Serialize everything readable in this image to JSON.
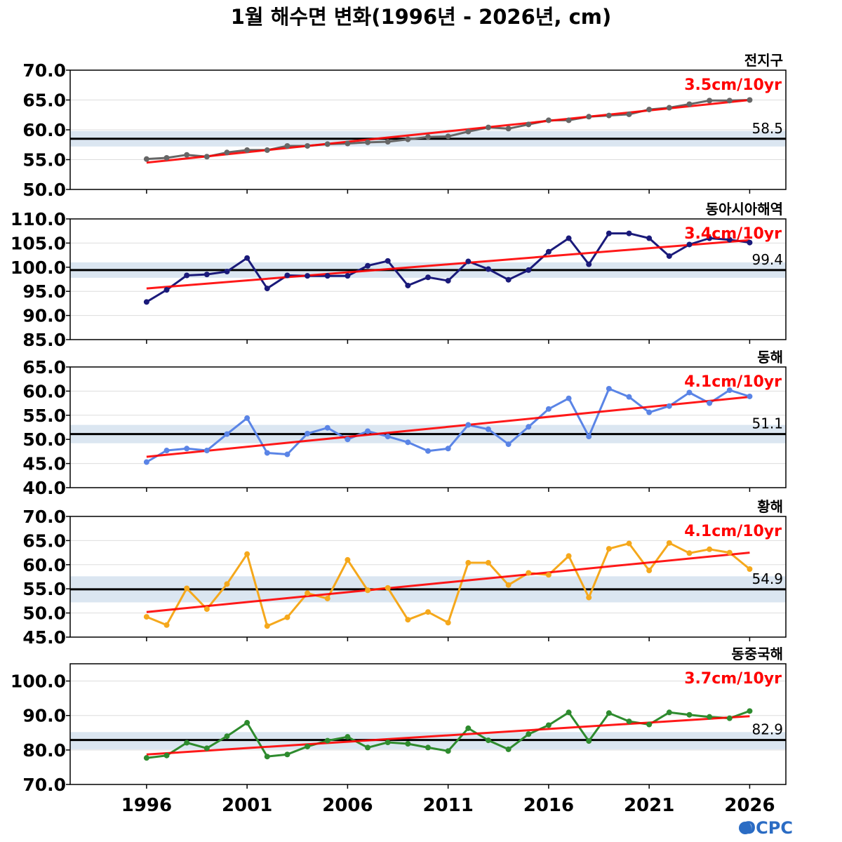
{
  "title": "1월 해수면 변화(1996년 - 2026년, cm)",
  "logo": "OCPC",
  "colors": {
    "trend": "#ff0000",
    "mean_line": "#000000",
    "band": "#dbe6f1"
  },
  "chart_data": [
    {
      "type": "line",
      "name": "전지구",
      "trend_label": "3.5cm/10yr",
      "mean_label": "58.5",
      "mean": 58.5,
      "band": [
        57.2,
        59.8
      ],
      "trend": [
        54.5,
        65.0
      ],
      "color": "#666666",
      "ylim": [
        50,
        70
      ],
      "yticks": [
        "50.0",
        "55.0",
        "60.0",
        "65.0",
        "70.0"
      ],
      "x": [
        1996,
        1997,
        1998,
        1999,
        2000,
        2001,
        2002,
        2003,
        2004,
        2005,
        2006,
        2007,
        2008,
        2009,
        2010,
        2011,
        2012,
        2013,
        2014,
        2015,
        2016,
        2017,
        2018,
        2019,
        2020,
        2021,
        2022,
        2023,
        2024,
        2025,
        2026
      ],
      "values": [
        55.1,
        55.3,
        55.8,
        55.5,
        56.2,
        56.6,
        56.6,
        57.3,
        57.3,
        57.6,
        57.7,
        57.9,
        58.0,
        58.4,
        58.8,
        58.9,
        59.7,
        60.4,
        60.2,
        60.9,
        61.6,
        61.6,
        62.2,
        62.4,
        62.6,
        63.4,
        63.7,
        64.3,
        64.9,
        64.9,
        65.0
      ]
    },
    {
      "type": "line",
      "name": "동아시아해역",
      "trend_label": "3.4cm/10yr",
      "mean_label": "99.4",
      "mean": 99.4,
      "band": [
        97.8,
        101.0
      ],
      "trend": [
        95.6,
        105.6
      ],
      "color": "#1a1a7a",
      "ylim": [
        85,
        110
      ],
      "yticks": [
        "85.0",
        "90.0",
        "95.0",
        "100.0",
        "105.0",
        "110.0"
      ],
      "x": [
        1996,
        1997,
        1998,
        1999,
        2000,
        2001,
        2002,
        2003,
        2004,
        2005,
        2006,
        2007,
        2008,
        2009,
        2010,
        2011,
        2012,
        2013,
        2014,
        2015,
        2016,
        2017,
        2018,
        2019,
        2020,
        2021,
        2022,
        2023,
        2024,
        2025,
        2026
      ],
      "values": [
        92.8,
        95.3,
        98.3,
        98.5,
        99.1,
        101.9,
        95.6,
        98.3,
        98.2,
        98.2,
        98.2,
        100.3,
        101.3,
        96.2,
        97.9,
        97.2,
        101.2,
        99.6,
        97.4,
        99.4,
        103.2,
        106.0,
        100.6,
        107.0,
        107.0,
        106.0,
        102.3,
        104.7,
        106.0,
        105.7,
        105.1
      ]
    },
    {
      "type": "line",
      "name": "동해",
      "trend_label": "4.1cm/10yr",
      "mean_label": "51.1",
      "mean": 51.1,
      "band": [
        49.2,
        53.0
      ],
      "trend": [
        46.4,
        58.8
      ],
      "color": "#5a84e6",
      "ylim": [
        40,
        65
      ],
      "yticks": [
        "40.0",
        "45.0",
        "50.0",
        "55.0",
        "60.0",
        "65.0"
      ],
      "x": [
        1996,
        1997,
        1998,
        1999,
        2000,
        2001,
        2002,
        2003,
        2004,
        2005,
        2006,
        2007,
        2008,
        2009,
        2010,
        2011,
        2012,
        2013,
        2014,
        2015,
        2016,
        2017,
        2018,
        2019,
        2020,
        2021,
        2022,
        2023,
        2024,
        2025,
        2026
      ],
      "values": [
        45.3,
        47.7,
        48.1,
        47.7,
        51.1,
        54.4,
        47.2,
        46.9,
        51.2,
        52.4,
        50.0,
        51.7,
        50.6,
        49.4,
        47.6,
        48.1,
        53.0,
        52.1,
        49.0,
        52.6,
        56.3,
        58.5,
        50.6,
        60.5,
        58.8,
        55.6,
        56.9,
        59.7,
        57.5,
        60.2,
        58.9
      ]
    },
    {
      "type": "line",
      "name": "황해",
      "trend_label": "4.1cm/10yr",
      "mean_label": "54.9",
      "mean": 54.9,
      "band": [
        52.2,
        57.6
      ],
      "trend": [
        50.2,
        62.5
      ],
      "color": "#f5a81c",
      "ylim": [
        45,
        70
      ],
      "yticks": [
        "45.0",
        "50.0",
        "55.0",
        "60.0",
        "65.0",
        "70.0"
      ],
      "x": [
        1996,
        1997,
        1998,
        1999,
        2000,
        2001,
        2002,
        2003,
        2004,
        2005,
        2006,
        2007,
        2008,
        2009,
        2010,
        2011,
        2012,
        2013,
        2014,
        2015,
        2016,
        2017,
        2018,
        2019,
        2020,
        2021,
        2022,
        2023,
        2024,
        2025,
        2026
      ],
      "values": [
        49.2,
        47.5,
        55.1,
        50.8,
        56.0,
        62.2,
        47.3,
        49.1,
        54.1,
        53.0,
        61.0,
        54.7,
        55.2,
        48.6,
        50.2,
        48.0,
        60.4,
        60.4,
        55.8,
        58.3,
        57.9,
        61.8,
        53.2,
        63.3,
        64.4,
        58.8,
        64.5,
        62.4,
        63.2,
        62.5,
        59.1
      ]
    },
    {
      "type": "line",
      "name": "동중국해",
      "trend_label": "3.7cm/10yr",
      "mean_label": "82.9",
      "mean": 82.9,
      "band": [
        80.2,
        85.2
      ],
      "trend": [
        78.7,
        89.8
      ],
      "color": "#2e8b2e",
      "ylim": [
        70,
        105
      ],
      "yticks": [
        "70.0",
        "80.0",
        "90.0",
        "100.0"
      ],
      "x": [
        1996,
        1997,
        1998,
        1999,
        2000,
        2001,
        2002,
        2003,
        2004,
        2005,
        2006,
        2007,
        2008,
        2009,
        2010,
        2011,
        2012,
        2013,
        2014,
        2015,
        2016,
        2017,
        2018,
        2019,
        2020,
        2021,
        2022,
        2023,
        2024,
        2025,
        2026
      ],
      "values": [
        77.7,
        78.4,
        82.1,
        80.5,
        84.0,
        87.9,
        78.1,
        78.7,
        81.0,
        82.7,
        83.8,
        80.7,
        82.2,
        81.8,
        80.7,
        79.7,
        86.3,
        82.8,
        80.2,
        84.6,
        87.2,
        90.9,
        82.6,
        90.7,
        88.3,
        87.4,
        90.9,
        90.2,
        89.6,
        89.2,
        91.3
      ]
    }
  ],
  "x_axis": {
    "xlim": [
      1992.2,
      2027.8
    ],
    "ticks": [
      "1996",
      "2001",
      "2006",
      "2011",
      "2016",
      "2021",
      "2026"
    ]
  }
}
